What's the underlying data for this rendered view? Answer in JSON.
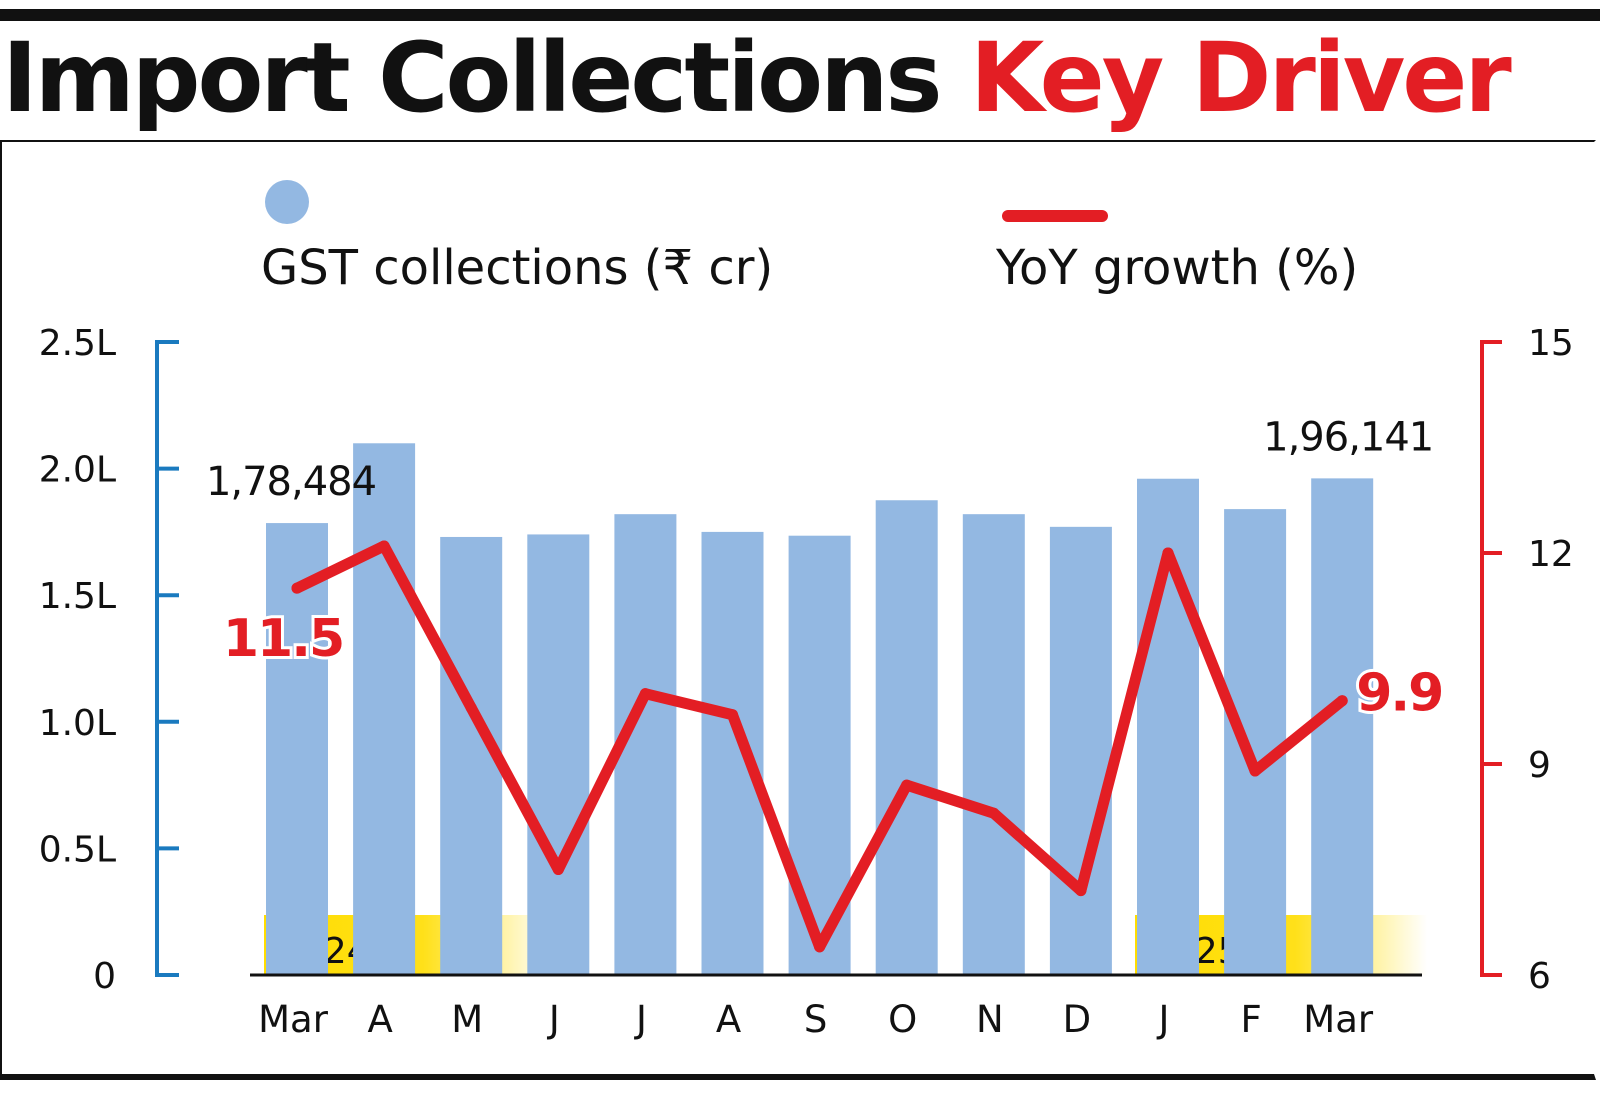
{
  "header": {
    "title_main": "Import Collections",
    "title_accent": "Key Driver"
  },
  "colors": {
    "bar": "#93b8e2",
    "line": "#e31e24",
    "left_axis": "#1a7abf",
    "right_axis": "#e31e24",
    "year_band": "#ffdd00"
  },
  "chart_data": {
    "type": "bar",
    "categories": [
      "Mar",
      "A",
      "M",
      "J",
      "J",
      "A",
      "S",
      "O",
      "N",
      "D",
      "J",
      "F",
      "Mar"
    ],
    "series": [
      {
        "name": "GST collections (₹ cr)",
        "type": "bar",
        "axis": "left",
        "values": [
          178484,
          210000,
          173000,
          174000,
          182000,
          175000,
          173500,
          187500,
          182000,
          177000,
          196000,
          184000,
          196141
        ]
      },
      {
        "name": "YoY growth (%)",
        "type": "line",
        "axis": "right",
        "values": [
          11.5,
          12.1,
          9.8,
          7.5,
          10.0,
          9.7,
          6.4,
          8.7,
          8.3,
          7.2,
          12.0,
          8.9,
          9.9
        ]
      }
    ],
    "left_axis": {
      "min": 0,
      "max": 250000,
      "ticks": [
        0,
        50000,
        100000,
        150000,
        200000,
        250000
      ],
      "tick_labels": [
        "0",
        "0.5L",
        "1.0L",
        "1.5L",
        "2.0L",
        "2.5L"
      ]
    },
    "right_axis": {
      "min": 6,
      "max": 15,
      "ticks": [
        6,
        9,
        12,
        15
      ],
      "tick_labels": [
        "6",
        "9",
        "12",
        "15"
      ]
    },
    "bar_labels": [
      {
        "index": 0,
        "text": "1,78,484"
      },
      {
        "index": 12,
        "text": "1,96,141"
      }
    ],
    "line_labels": [
      {
        "index": 0,
        "text": "11.5"
      },
      {
        "index": 12,
        "text": "9.9"
      }
    ],
    "year_bands": [
      {
        "label": "2024",
        "start_index": 0
      },
      {
        "label": "2025",
        "start_index": 10
      }
    ],
    "legend": {
      "position": "top"
    },
    "grid": false
  }
}
